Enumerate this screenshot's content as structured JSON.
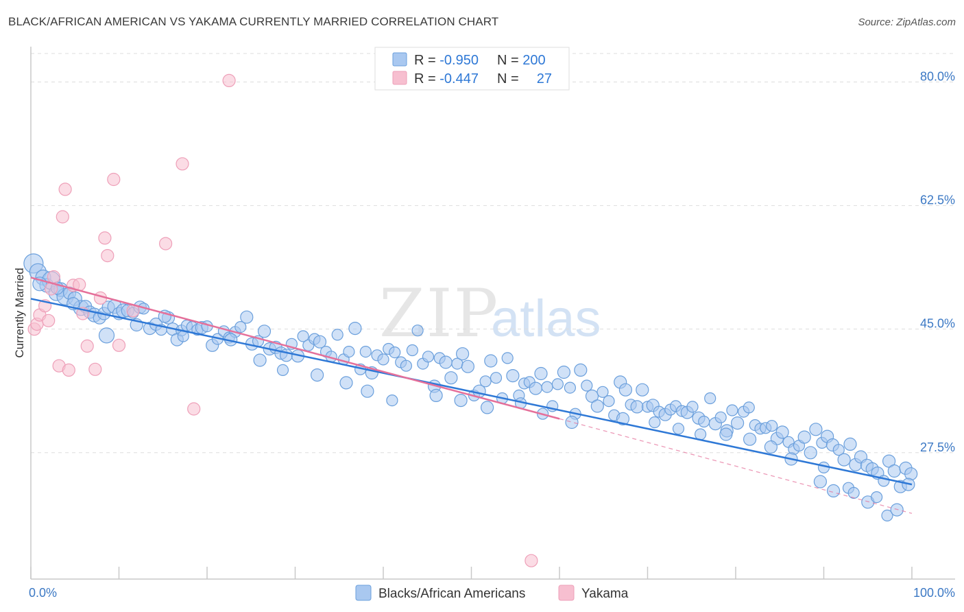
{
  "title": "BLACK/AFRICAN AMERICAN VS YAKAMA CURRENTLY MARRIED CORRELATION CHART",
  "source": "Source: ZipAtlas.com",
  "watermark": {
    "zip": "ZIP",
    "atlas": "atlas"
  },
  "colors": {
    "blue_fill": "#a9c8f0",
    "blue_stroke": "#6a9fdc",
    "blue_line": "#2e78d6",
    "pink_fill": "#f7bfd0",
    "pink_stroke": "#ee9fb8",
    "pink_line": "#e5709a",
    "axis_text": "#3b78c4",
    "grid": "#dddddd"
  },
  "legend": {
    "rows": [
      {
        "r_label": "R = ",
        "r_value": "-0.950",
        "n_label": "N = ",
        "n_value": "200",
        "color": "blue"
      },
      {
        "r_label": "R = ",
        "r_value": "-0.447",
        "n_label": "N = ",
        "n_value": "27",
        "color": "pink"
      }
    ]
  },
  "bottom_legend": [
    {
      "label": "Blacks/African Americans",
      "color": "blue"
    },
    {
      "label": "Yakama",
      "color": "pink"
    }
  ],
  "chart_data": {
    "type": "scatter",
    "title": "BLACK/AFRICAN AMERICAN VS YAKAMA CURRENTLY MARRIED CORRELATION CHART",
    "xlabel": "",
    "ylabel": "Currently Married",
    "xlim": [
      0,
      100
    ],
    "ylim": [
      9.6,
      85
    ],
    "x_tick_labels": [
      {
        "value": 0,
        "label": "0.0%"
      },
      {
        "value": 100,
        "label": "100.0%"
      }
    ],
    "y_ticks": [
      {
        "value": 27.5,
        "label": "27.5%"
      },
      {
        "value": 45.0,
        "label": "45.0%"
      },
      {
        "value": 62.5,
        "label": "62.5%"
      },
      {
        "value": 80.0,
        "label": "80.0%"
      }
    ],
    "grid": true,
    "legend_position": "top-center",
    "series": [
      {
        "name": "Blacks/African Americans",
        "color": "blue",
        "trend": {
          "x": [
            0,
            100
          ],
          "y": [
            49.3,
            23.0
          ]
        },
        "points": [
          [
            0.3,
            54.3,
            14
          ],
          [
            0.8,
            53.1,
            12
          ],
          [
            1.4,
            52.3,
            11
          ],
          [
            1.8,
            51.2,
            10
          ],
          [
            2.3,
            51.9,
            13
          ],
          [
            2.9,
            50.1,
            11
          ],
          [
            3.4,
            50.6,
            10
          ],
          [
            3.9,
            49.6,
            12
          ],
          [
            4.4,
            50.1,
            9
          ],
          [
            5.0,
            49.3,
            10
          ],
          [
            5.7,
            48.0,
            11
          ],
          [
            6.2,
            48.2,
            9
          ],
          [
            6.7,
            47.4,
            9
          ],
          [
            7.2,
            47.0,
            10
          ],
          [
            7.8,
            46.6,
            9
          ],
          [
            8.3,
            47.2,
            9
          ],
          [
            8.8,
            48.1,
            9
          ],
          [
            9.5,
            48.2,
            10
          ],
          [
            10.0,
            47.2,
            9
          ],
          [
            10.5,
            47.6,
            10
          ],
          [
            11.0,
            47.6,
            9
          ],
          [
            11.6,
            47.3,
            8
          ],
          [
            12.0,
            45.6,
            9
          ],
          [
            12.4,
            48.1,
            9
          ],
          [
            12.8,
            47.9,
            8
          ],
          [
            13.5,
            45.1,
            9
          ],
          [
            14.2,
            45.7,
            9
          ],
          [
            14.8,
            44.9,
            8
          ],
          [
            15.6,
            46.6,
            9
          ],
          [
            16.1,
            45.0,
            9
          ],
          [
            16.6,
            43.5,
            9
          ],
          [
            17.1,
            44.8,
            8
          ],
          [
            17.7,
            45.5,
            8
          ],
          [
            18.3,
            45.3,
            8
          ],
          [
            18.9,
            44.9,
            8
          ],
          [
            19.4,
            45.2,
            9
          ],
          [
            20.0,
            45.4,
            8
          ],
          [
            20.6,
            42.7,
            9
          ],
          [
            21.2,
            43.6,
            8
          ],
          [
            21.9,
            44.7,
            8
          ],
          [
            22.5,
            43.8,
            8
          ],
          [
            23.2,
            44.6,
            8
          ],
          [
            23.8,
            45.3,
            8
          ],
          [
            24.5,
            46.7,
            9
          ],
          [
            25.1,
            42.9,
            9
          ],
          [
            25.8,
            43.3,
            8
          ],
          [
            26.5,
            44.7,
            9
          ],
          [
            27.1,
            42.2,
            9
          ],
          [
            27.8,
            42.4,
            9
          ],
          [
            28.4,
            41.6,
            9
          ],
          [
            29.0,
            41.3,
            9
          ],
          [
            29.6,
            42.9,
            8
          ],
          [
            30.3,
            41.2,
            9
          ],
          [
            30.9,
            44.0,
            8
          ],
          [
            31.5,
            42.7,
            8
          ],
          [
            32.2,
            43.6,
            8
          ],
          [
            32.8,
            43.2,
            9
          ],
          [
            33.5,
            41.8,
            8
          ],
          [
            34.1,
            41.1,
            8
          ],
          [
            34.8,
            44.2,
            8
          ],
          [
            35.5,
            40.7,
            8
          ],
          [
            36.1,
            41.8,
            8
          ],
          [
            36.8,
            45.1,
            9
          ],
          [
            37.4,
            39.3,
            8
          ],
          [
            38.0,
            41.8,
            8
          ],
          [
            38.7,
            38.8,
            9
          ],
          [
            39.3,
            41.3,
            8
          ],
          [
            40.0,
            40.7,
            8
          ],
          [
            40.6,
            42.2,
            8
          ],
          [
            41.3,
            41.7,
            8
          ],
          [
            42.0,
            40.3,
            8
          ],
          [
            42.6,
            39.8,
            8
          ],
          [
            43.3,
            42.0,
            8
          ],
          [
            43.9,
            44.8,
            8
          ],
          [
            44.5,
            40.1,
            8
          ],
          [
            45.1,
            41.1,
            8
          ],
          [
            45.8,
            36.9,
            9
          ],
          [
            46.4,
            40.9,
            8
          ],
          [
            47.1,
            40.3,
            9
          ],
          [
            47.7,
            38.1,
            9
          ],
          [
            48.4,
            40.1,
            8
          ],
          [
            49.0,
            41.5,
            9
          ],
          [
            49.6,
            39.7,
            9
          ],
          [
            50.3,
            35.6,
            8
          ],
          [
            50.9,
            36.2,
            9
          ],
          [
            51.6,
            37.6,
            8
          ],
          [
            52.2,
            40.5,
            9
          ],
          [
            52.8,
            38.1,
            8
          ],
          [
            53.5,
            35.2,
            8
          ],
          [
            54.1,
            40.9,
            8
          ],
          [
            54.7,
            38.4,
            9
          ],
          [
            55.4,
            35.6,
            8
          ],
          [
            56.0,
            37.3,
            8
          ],
          [
            56.6,
            37.5,
            8
          ],
          [
            57.3,
            36.6,
            9
          ],
          [
            57.9,
            38.7,
            9
          ],
          [
            58.6,
            36.8,
            8
          ],
          [
            59.2,
            34.1,
            8
          ],
          [
            59.8,
            37.2,
            8
          ],
          [
            60.5,
            38.9,
            9
          ],
          [
            61.2,
            36.7,
            8
          ],
          [
            61.8,
            33.0,
            8
          ],
          [
            62.4,
            39.2,
            9
          ],
          [
            63.1,
            37.0,
            8
          ],
          [
            63.7,
            35.5,
            9
          ],
          [
            64.3,
            34.1,
            9
          ],
          [
            64.9,
            36.1,
            8
          ],
          [
            65.6,
            34.8,
            8
          ],
          [
            66.2,
            32.8,
            8
          ],
          [
            66.9,
            37.5,
            9
          ],
          [
            67.5,
            36.4,
            9
          ],
          [
            68.1,
            34.3,
            8
          ],
          [
            68.8,
            34.0,
            9
          ],
          [
            69.4,
            36.4,
            9
          ],
          [
            70.0,
            34.0,
            8
          ],
          [
            70.6,
            34.2,
            9
          ],
          [
            71.3,
            33.3,
            8
          ],
          [
            72.0,
            32.9,
            9
          ],
          [
            72.6,
            33.6,
            8
          ],
          [
            73.2,
            34.1,
            8
          ],
          [
            73.9,
            33.4,
            8
          ],
          [
            74.5,
            33.2,
            9
          ],
          [
            75.1,
            34.0,
            8
          ],
          [
            75.8,
            32.4,
            9
          ],
          [
            76.4,
            31.9,
            8
          ],
          [
            77.1,
            35.2,
            8
          ],
          [
            77.7,
            31.6,
            9
          ],
          [
            78.3,
            32.5,
            8
          ],
          [
            79.0,
            30.6,
            9
          ],
          [
            79.6,
            33.5,
            8
          ],
          [
            80.2,
            31.7,
            9
          ],
          [
            80.9,
            33.3,
            8
          ],
          [
            81.5,
            33.9,
            8
          ],
          [
            82.2,
            31.4,
            8
          ],
          [
            82.8,
            30.9,
            8
          ],
          [
            83.4,
            31.0,
            8
          ],
          [
            84.1,
            31.3,
            8
          ],
          [
            84.7,
            29.5,
            9
          ],
          [
            85.3,
            30.4,
            9
          ],
          [
            86.0,
            29.0,
            8
          ],
          [
            86.6,
            28.0,
            8
          ],
          [
            87.2,
            28.5,
            8
          ],
          [
            87.8,
            29.7,
            9
          ],
          [
            88.5,
            27.5,
            9
          ],
          [
            89.1,
            30.8,
            9
          ],
          [
            89.8,
            28.9,
            8
          ],
          [
            90.4,
            29.8,
            9
          ],
          [
            91.0,
            28.6,
            9
          ],
          [
            91.7,
            27.9,
            8
          ],
          [
            92.3,
            26.5,
            9
          ],
          [
            93.0,
            28.7,
            9
          ],
          [
            93.6,
            25.8,
            9
          ],
          [
            94.2,
            26.9,
            9
          ],
          [
            94.9,
            25.7,
            9
          ],
          [
            95.5,
            25.2,
            9
          ],
          [
            96.1,
            24.6,
            9
          ],
          [
            96.8,
            23.5,
            8
          ],
          [
            97.4,
            26.3,
            9
          ],
          [
            98.0,
            24.9,
            9
          ],
          [
            98.7,
            22.7,
            9
          ],
          [
            99.3,
            25.3,
            9
          ],
          [
            99.9,
            24.5,
            9
          ],
          [
            1.0,
            51.4,
            10
          ],
          [
            3.0,
            50.8,
            9
          ],
          [
            4.8,
            48.6,
            9
          ],
          [
            8.6,
            44.1,
            11
          ],
          [
            15.2,
            46.8,
            9
          ],
          [
            17.3,
            44.0,
            8
          ],
          [
            22.7,
            43.5,
            9
          ],
          [
            26.0,
            40.6,
            9
          ],
          [
            28.6,
            39.2,
            8
          ],
          [
            32.5,
            38.5,
            9
          ],
          [
            35.8,
            37.4,
            9
          ],
          [
            38.2,
            36.2,
            9
          ],
          [
            41.0,
            34.9,
            8
          ],
          [
            46.0,
            35.6,
            9
          ],
          [
            48.8,
            34.9,
            9
          ],
          [
            51.8,
            33.9,
            9
          ],
          [
            55.6,
            34.5,
            8
          ],
          [
            58.1,
            33.0,
            8
          ],
          [
            61.4,
            31.8,
            9
          ],
          [
            67.2,
            32.3,
            9
          ],
          [
            70.8,
            31.8,
            8
          ],
          [
            73.5,
            30.9,
            8
          ],
          [
            76.0,
            30.1,
            8
          ],
          [
            78.9,
            30.1,
            9
          ],
          [
            81.6,
            29.4,
            9
          ],
          [
            84.0,
            28.3,
            9
          ],
          [
            86.3,
            26.6,
            9
          ],
          [
            90.0,
            25.4,
            8
          ],
          [
            92.8,
            22.5,
            8
          ],
          [
            95.0,
            20.5,
            9
          ],
          [
            97.2,
            18.6,
            8
          ],
          [
            98.3,
            19.4,
            9
          ],
          [
            96.0,
            21.2,
            8
          ],
          [
            99.6,
            23.0,
            9
          ],
          [
            93.4,
            21.8,
            8
          ],
          [
            91.1,
            22.1,
            9
          ],
          [
            89.6,
            23.4,
            9
          ]
        ]
      },
      {
        "name": "Yakama",
        "color": "pink",
        "trend": {
          "x": [
            0,
            60
          ],
          "y": [
            52.3,
            32.3
          ]
        },
        "trend_extension": {
          "x": [
            60,
            100
          ],
          "y": [
            32.3,
            18.9
          ]
        },
        "points": [
          [
            0.4,
            45.0,
            9
          ],
          [
            0.7,
            45.7,
            9
          ],
          [
            1.0,
            47.0,
            9
          ],
          [
            1.6,
            48.3,
            9
          ],
          [
            2.0,
            46.2,
            9
          ],
          [
            2.3,
            50.7,
            9
          ],
          [
            2.6,
            52.4,
            9
          ],
          [
            3.2,
            39.8,
            9
          ],
          [
            3.6,
            60.9,
            9
          ],
          [
            3.9,
            64.8,
            9
          ],
          [
            4.3,
            39.2,
            9
          ],
          [
            4.8,
            51.2,
            9
          ],
          [
            5.5,
            51.3,
            9
          ],
          [
            5.9,
            47.2,
            9
          ],
          [
            6.4,
            42.6,
            9
          ],
          [
            7.3,
            39.3,
            9
          ],
          [
            7.9,
            49.4,
            9
          ],
          [
            8.4,
            57.9,
            9
          ],
          [
            8.7,
            55.4,
            9
          ],
          [
            9.4,
            66.2,
            9
          ],
          [
            10.0,
            42.7,
            9
          ],
          [
            11.6,
            47.6,
            9
          ],
          [
            15.3,
            57.1,
            9
          ],
          [
            17.2,
            68.4,
            9
          ],
          [
            18.5,
            33.7,
            9
          ],
          [
            22.5,
            80.2,
            9
          ],
          [
            56.8,
            12.2,
            9
          ]
        ]
      }
    ]
  }
}
